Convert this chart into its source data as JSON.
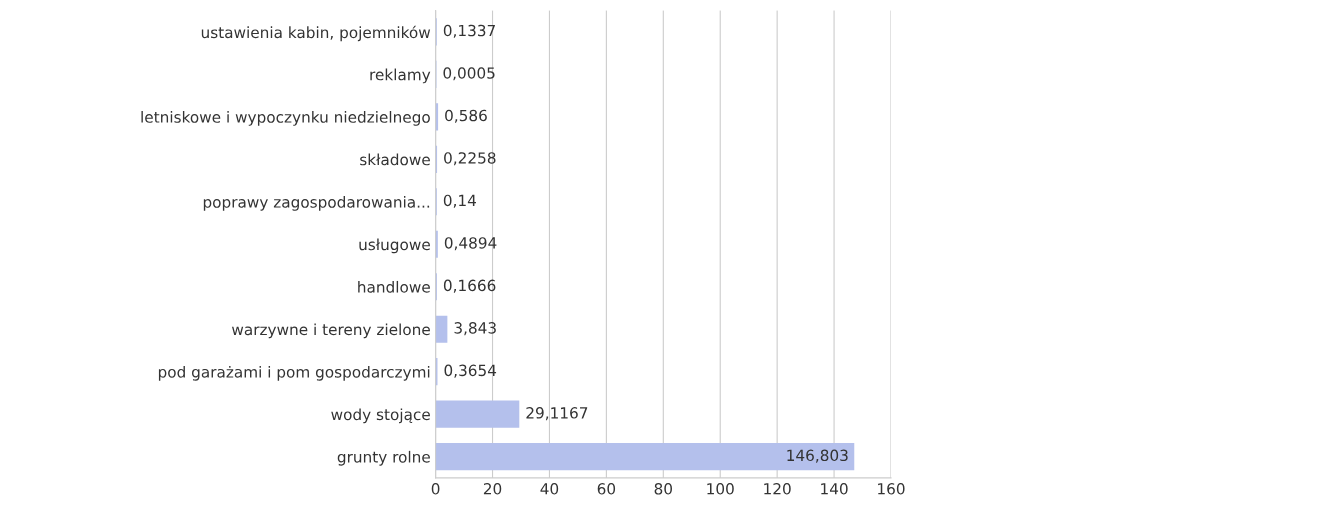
{
  "chart_data": {
    "type": "bar",
    "orientation": "horizontal",
    "categories": [
      "ustawienia kabin, pojemników",
      "reklamy",
      "letniskowe i wypoczynku niedzielnego",
      "składowe",
      "poprawy zagospodarowania...",
      "usługowe",
      "handlowe",
      "warzywne i tereny zielone",
      "pod garażami i pom gospodarczymi",
      "wody stojące",
      "grunty rolne"
    ],
    "values": [
      0.1337,
      0.0005,
      0.586,
      0.2258,
      0.14,
      0.4894,
      0.1666,
      3.843,
      0.3654,
      29.1167,
      146.803
    ],
    "value_labels": [
      "0,1337",
      "0,0005",
      "0,586",
      "0,2258",
      "0,14",
      "0,4894",
      "0,1666",
      "3,843",
      "0,3654",
      "29,1167",
      "146,803"
    ],
    "color": "#b4c0ec",
    "xlim": [
      0,
      160
    ],
    "xticks": [
      0,
      20,
      40,
      60,
      80,
      100,
      120,
      140,
      160
    ],
    "grid": "x"
  }
}
